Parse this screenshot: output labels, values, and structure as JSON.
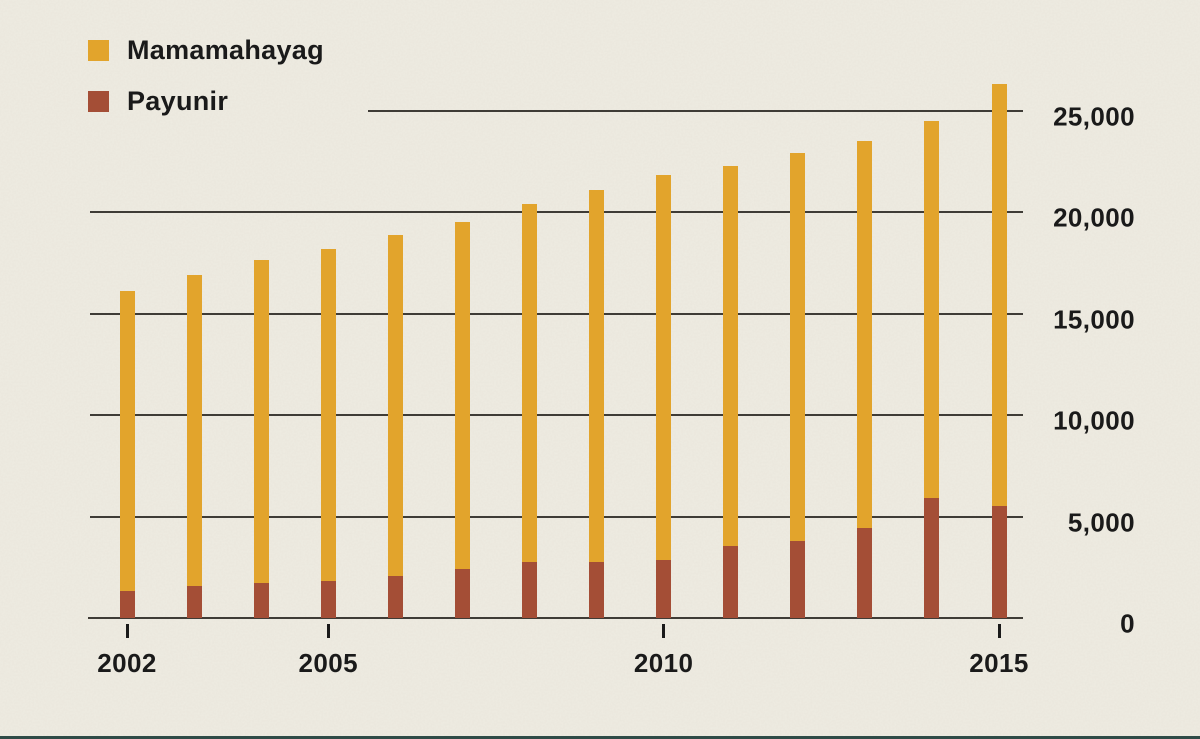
{
  "chart_data": {
    "type": "bar",
    "style": "overlay bars from zero (Payunir drawn in front of Mamamahayag)",
    "title": "",
    "categories": [
      2002,
      2003,
      2004,
      2005,
      2006,
      2007,
      2008,
      2009,
      2010,
      2011,
      2012,
      2013,
      2014,
      2015
    ],
    "series": [
      {
        "name": "Mamamahayag",
        "color": "#E2A42C",
        "values": [
          16100,
          16900,
          17650,
          18200,
          18850,
          19500,
          20400,
          21100,
          21800,
          22250,
          22900,
          23500,
          24500,
          26300
        ]
      },
      {
        "name": "Payunir",
        "color": "#A44E36",
        "values": [
          1350,
          1600,
          1700,
          1800,
          2050,
          2400,
          2750,
          2750,
          2850,
          3550,
          3800,
          4450,
          5900,
          5500
        ]
      }
    ],
    "y_axis": {
      "side": "right",
      "range": [
        0,
        26500
      ],
      "grid": true,
      "ticks": [
        {
          "value": 0,
          "label": "0"
        },
        {
          "value": 5000,
          "label": "5,000"
        },
        {
          "value": 10000,
          "label": "10,000"
        },
        {
          "value": 15000,
          "label": "15,000"
        },
        {
          "value": 20000,
          "label": "20,000"
        },
        {
          "value": 25000,
          "label": "25,000"
        }
      ]
    },
    "x_axis": {
      "ticks": [
        {
          "value": 2002,
          "label": "2002"
        },
        {
          "value": 2005,
          "label": "2005"
        },
        {
          "value": 2010,
          "label": "2010"
        },
        {
          "value": 2015,
          "label": "2015"
        }
      ]
    },
    "legend": {
      "position": "top-left",
      "items": [
        "Mamamahayag",
        "Payunir"
      ]
    }
  },
  "colors": {
    "background": "#EFECE2",
    "grid": "#3F3C36",
    "text": "#1A1A1A",
    "bottom_strip": "#2F4B47"
  }
}
